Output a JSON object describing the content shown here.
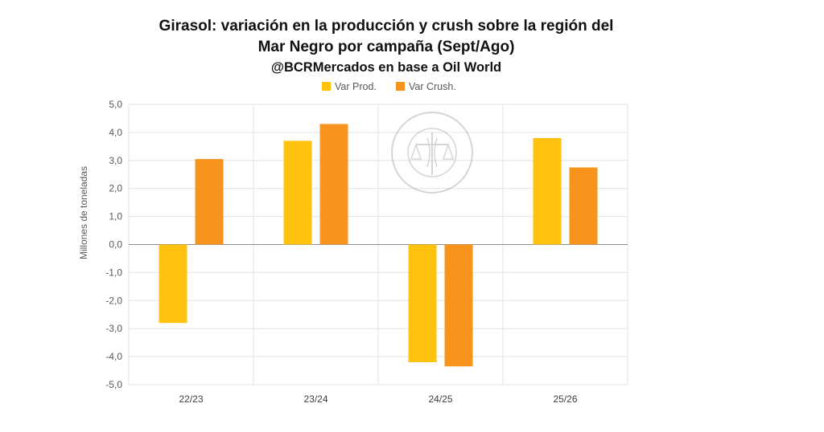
{
  "chart_data": {
    "type": "bar",
    "title": "Girasol: variación en la producción y crush sobre la región del",
    "title_line2": "Mar Negro por campaña (Sept/Ago)",
    "subtitle": "@BCRMercados en base a Oil World",
    "ylabel": "Millones de toneladas",
    "ylim": [
      -5.0,
      5.0
    ],
    "y_ticks": [
      "5,0",
      "4,0",
      "3,0",
      "2,0",
      "1,0",
      "0,0",
      "-1,0",
      "-2,0",
      "-3,0",
      "-4,0",
      "-5,0"
    ],
    "categories": [
      "22/23",
      "23/24",
      "24/25",
      "25/26"
    ],
    "series": [
      {
        "name": "Var Prod.",
        "color": "#FFC20E",
        "values": [
          -2.8,
          3.7,
          -4.2,
          3.8
        ]
      },
      {
        "name": "Var Crush.",
        "color": "#F7941D",
        "values": [
          3.05,
          4.3,
          -4.35,
          2.75
        ]
      }
    ],
    "grid": true,
    "legend_position": "top",
    "watermark": "BOLSA DE COMERCIO DE ROSARIO"
  }
}
